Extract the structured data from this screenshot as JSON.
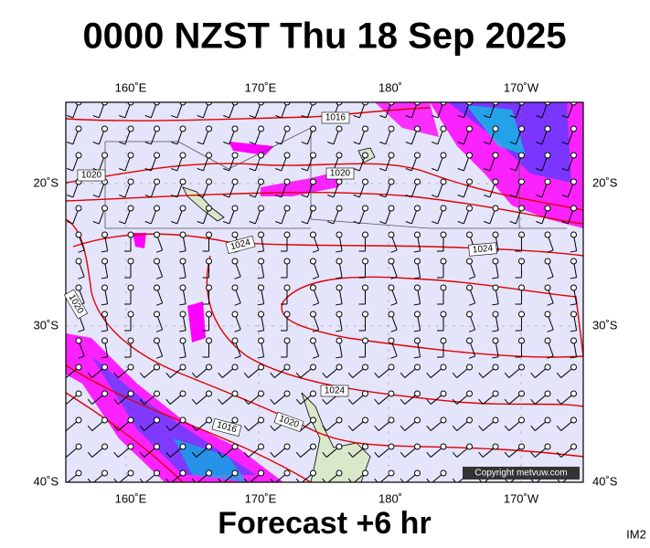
{
  "title": "0000 NZST Thu 18 Sep 2025",
  "map": {
    "top_lon_labels": [
      "160˚E",
      "170˚E",
      "180˚",
      "170˚W"
    ],
    "bottom_lon_labels": [
      "160˚E",
      "170˚E",
      "180˚",
      "170˚W"
    ],
    "left_lat_labels": [
      "20˚S",
      "30˚S",
      "40˚S"
    ],
    "right_lat_labels": [
      "20˚S",
      "30˚S",
      "40˚S"
    ],
    "isobar_labels": [
      "1016",
      "1020",
      "1020",
      "1024",
      "1024",
      "1020",
      "1024",
      "1016",
      "1020"
    ],
    "copyright": "Copyright metvuw.com"
  },
  "footer": "Forecast +6 hr",
  "corner_label": "IM2"
}
